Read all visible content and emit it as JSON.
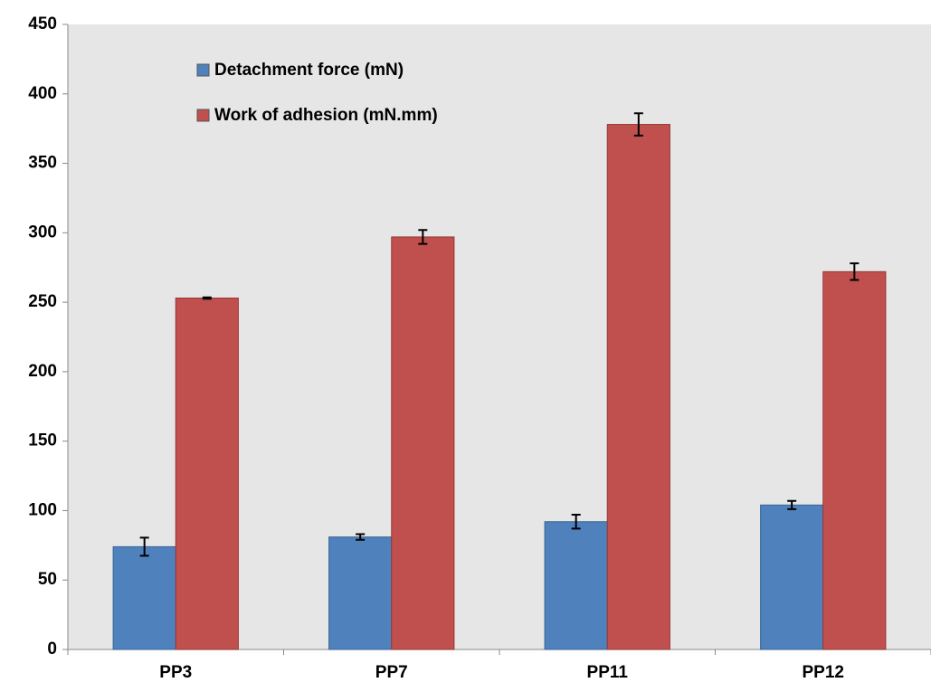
{
  "chart_data": {
    "type": "bar",
    "categories": [
      "PP3",
      "PP7",
      "PP11",
      "PP12"
    ],
    "series": [
      {
        "name": "Detachment force (mN)",
        "color": "#4f81bd",
        "values": [
          74,
          81,
          92,
          104
        ],
        "errors": [
          6.5,
          2,
          5,
          3
        ]
      },
      {
        "name": "Work of adhesion (mN.mm)",
        "color": "#c0504d",
        "values": [
          253,
          297,
          378,
          272
        ],
        "errors": [
          0.5,
          5,
          8,
          6
        ]
      }
    ],
    "ylim": [
      0,
      450
    ],
    "yticks": [
      0,
      50,
      100,
      150,
      200,
      250,
      300,
      350,
      400,
      450
    ],
    "legend": "upper-left"
  }
}
